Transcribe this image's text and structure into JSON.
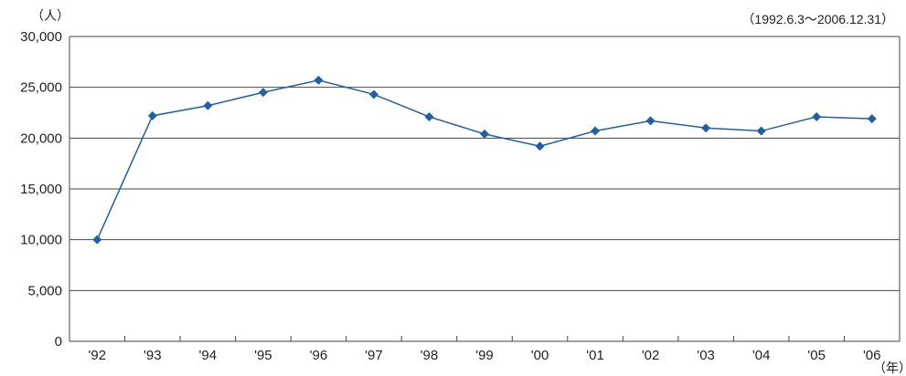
{
  "chart_data": {
    "type": "line",
    "ylabel": "（人）",
    "xunit": "（年）",
    "period_note": "（1992.6.3～2006.12.31）",
    "ylim": [
      0,
      30000
    ],
    "yticks": [
      "30,000",
      "25,000",
      "20,000",
      "15,000",
      "10,000",
      "5,000",
      "0"
    ],
    "ytick_values": [
      30000,
      25000,
      20000,
      15000,
      10000,
      5000,
      0
    ],
    "categories": [
      "'92",
      "'93",
      "'94",
      "'95",
      "'96",
      "'97",
      "'98",
      "'99",
      "'00",
      "'01",
      "'02",
      "'03",
      "'04",
      "'05",
      "'06"
    ],
    "values": [
      10000,
      22200,
      23200,
      24500,
      25700,
      24300,
      22100,
      20400,
      19200,
      20700,
      21700,
      21000,
      20700,
      22100,
      21900
    ],
    "grid": true,
    "legend": "none",
    "line_color": "#1f5fa6",
    "marker": "diamond"
  }
}
